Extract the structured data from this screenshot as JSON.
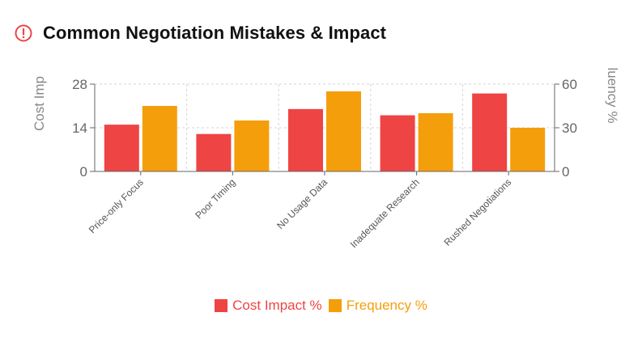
{
  "header": {
    "title": "Common Negotiation Mistakes & Impact",
    "icon": "alert-circle-icon",
    "icon_color": "#ef4444"
  },
  "chart_data": {
    "type": "bar",
    "categories": [
      "Price-only Focus",
      "Poor Timing",
      "No Usage Data",
      "Inadequate Research",
      "Rushed Negotiations"
    ],
    "series": [
      {
        "name": "Cost Impact %",
        "values": [
          15,
          12,
          20,
          18,
          25
        ],
        "axis": "left",
        "color": "#ef4444"
      },
      {
        "name": "Frequency %",
        "values": [
          45,
          35,
          55,
          40,
          30
        ],
        "axis": "right",
        "color": "#f59e0b"
      }
    ],
    "y_left": {
      "label": "Cost Imp",
      "ticks": [
        0,
        14,
        28
      ],
      "ylim": [
        0,
        28
      ]
    },
    "y_right": {
      "label": "luency %",
      "ticks": [
        0,
        30,
        60
      ],
      "ylim": [
        0,
        60
      ]
    },
    "grid": true,
    "legend_position": "bottom"
  }
}
